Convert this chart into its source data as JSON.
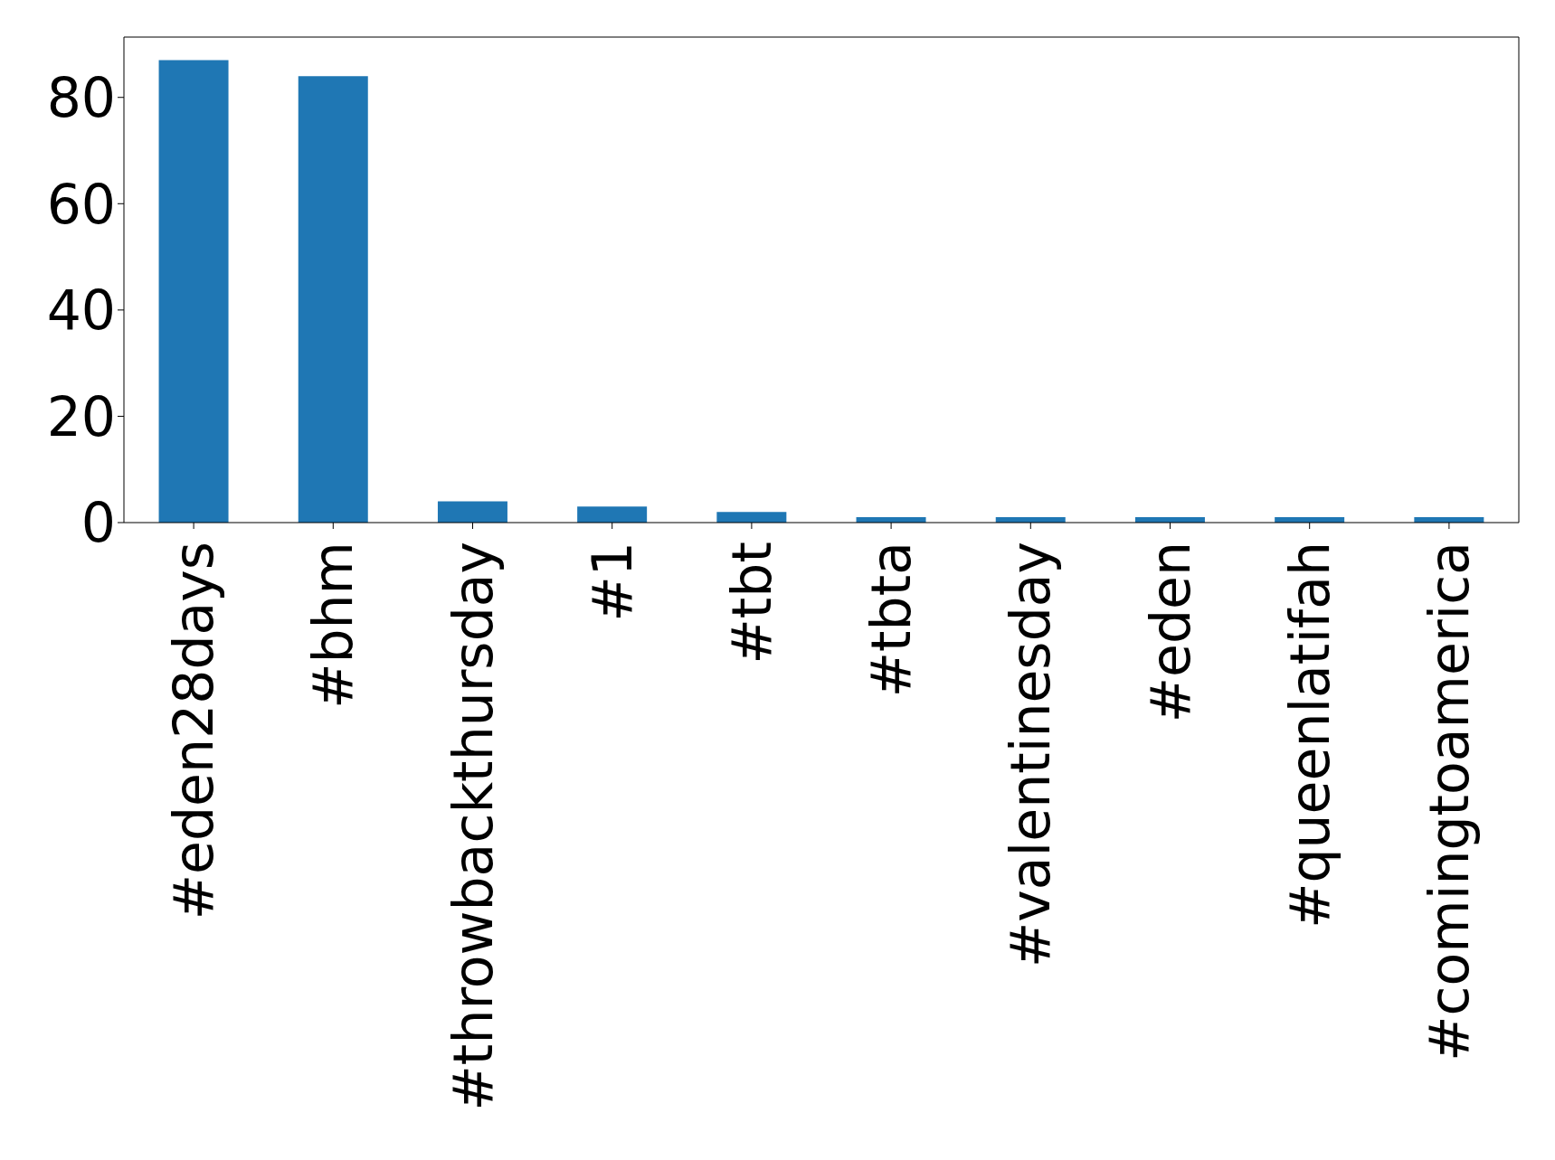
{
  "chart_data": {
    "type": "bar",
    "categories": [
      "#eden28days",
      "#bhm",
      "#throwbackthursday",
      "#1",
      "#tbt",
      "#tbta",
      "#valentinesday",
      "#eden",
      "#queenlatifah",
      "#comingtoamerica"
    ],
    "values": [
      87,
      84,
      4,
      3,
      2,
      1,
      1,
      1,
      1,
      1
    ],
    "color": "#1f77b4",
    "ylim": [
      0,
      91.35
    ],
    "yticks": [
      0,
      20,
      40,
      60,
      80
    ],
    "grid": false
  }
}
